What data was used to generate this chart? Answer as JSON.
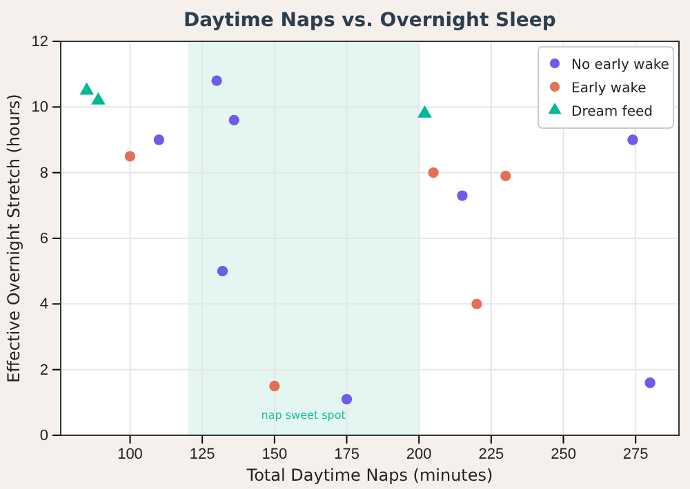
{
  "chart_data": {
    "type": "scatter",
    "title": "Daytime Naps vs. Overnight Sleep",
    "xlabel": "Total Daytime Naps (minutes)",
    "ylabel": "Effective Overnight Stretch (hours)",
    "xlim": [
      76,
      290
    ],
    "xticks": [
      100,
      125,
      150,
      175,
      200,
      225,
      250,
      275
    ],
    "ylim": [
      0,
      12
    ],
    "yticks": [
      0,
      2,
      4,
      6,
      8,
      10,
      12
    ],
    "grid": true,
    "legend": "top right",
    "series": [
      {
        "name": "No early wake",
        "color": "#6c5ce7",
        "marker": "circle",
        "x": [
          110,
          130,
          136,
          132,
          175,
          215,
          274,
          280
        ],
        "values": [
          9.0,
          10.8,
          9.6,
          5.0,
          1.1,
          7.3,
          9.0,
          1.6
        ]
      },
      {
        "name": "Early wake",
        "color": "#e17055",
        "marker": "circle",
        "x": [
          100,
          150,
          205,
          220,
          230
        ],
        "values": [
          8.5,
          1.5,
          8.0,
          4.0,
          7.9
        ]
      },
      {
        "name": "Dream feed",
        "color": "#00b894",
        "marker": "triangle",
        "x": [
          85,
          89,
          202
        ],
        "values": [
          10.5,
          10.2,
          9.8
        ]
      }
    ],
    "bands": [
      {
        "axis": "x",
        "from": 120,
        "to": 200,
        "color": "#e3f6f2",
        "label": "nap sweet spot"
      }
    ]
  }
}
